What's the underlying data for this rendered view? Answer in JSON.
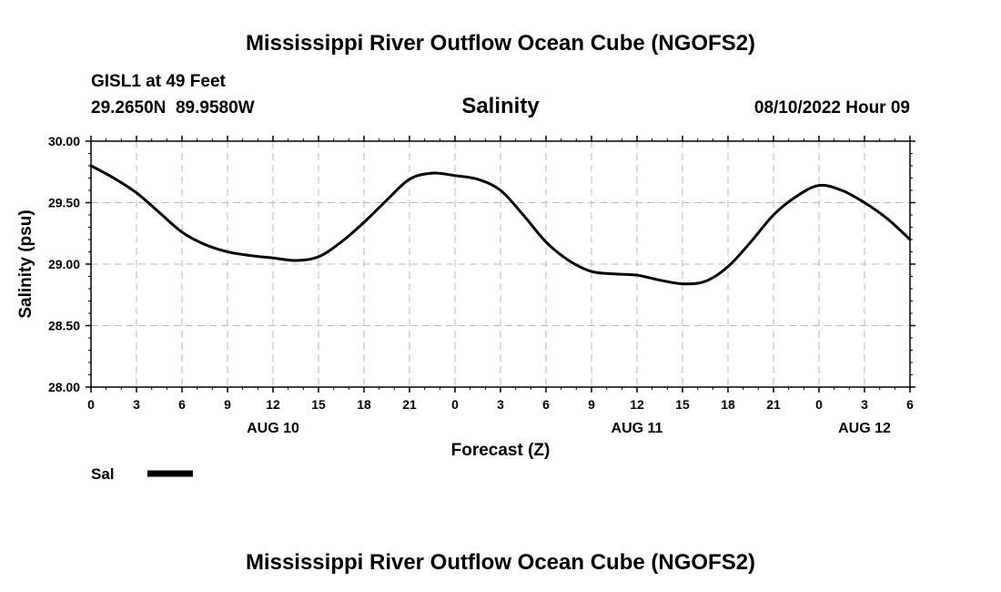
{
  "header": {
    "title": "Mississippi River Outflow Ocean Cube (NGOFS2)",
    "station": "GISL1 at 49 Feet",
    "coords": "29.2650N  89.9580W",
    "variable": "Salinity",
    "datetime": "08/10/2022 Hour 09"
  },
  "footer": {
    "title": "Mississippi River Outflow Ocean Cube (NGOFS2)"
  },
  "chart_data": {
    "type": "line",
    "title": "Salinity",
    "xlabel": "Forecast (Z)",
    "ylabel": "Salinity (psu)",
    "xlim": [
      0,
      54
    ],
    "ylim": [
      28.0,
      30.0
    ],
    "yticks": [
      30.0,
      29.5,
      29.0,
      28.5,
      28.0
    ],
    "ytick_labels": [
      "30.00",
      "29.50",
      "29.00",
      "28.50",
      "28.00"
    ],
    "xticks": [
      0,
      3,
      6,
      9,
      12,
      15,
      18,
      21,
      24,
      27,
      30,
      33,
      36,
      39,
      42,
      45,
      48,
      51,
      54
    ],
    "xtick_labels": [
      "0",
      "3",
      "6",
      "9",
      "12",
      "15",
      "18",
      "21",
      "0",
      "3",
      "6",
      "9",
      "12",
      "15",
      "18",
      "21",
      "0",
      "3",
      "6"
    ],
    "date_labels": [
      {
        "x": 12,
        "label": "AUG 10"
      },
      {
        "x": 36,
        "label": "AUG 11"
      },
      {
        "x": 51,
        "label": "AUG 12"
      }
    ],
    "grid": true,
    "legend": [
      {
        "name": "Sal",
        "placement": "bottom-left"
      }
    ],
    "series": [
      {
        "name": "Sal",
        "x": [
          0,
          1.5,
          3,
          4.5,
          6,
          7.5,
          9,
          10.5,
          12,
          13.5,
          15,
          16.5,
          18,
          19.5,
          21,
          22.5,
          24,
          25.5,
          27,
          28.5,
          30,
          31.5,
          33,
          34.5,
          36,
          37.5,
          39,
          40.5,
          42,
          43.5,
          45,
          46.5,
          48,
          49.5,
          51,
          52.5,
          54
        ],
        "values": [
          29.8,
          29.7,
          29.58,
          29.42,
          29.26,
          29.16,
          29.1,
          29.07,
          29.05,
          29.03,
          29.06,
          29.18,
          29.34,
          29.52,
          29.69,
          29.74,
          29.72,
          29.69,
          29.6,
          29.4,
          29.18,
          29.03,
          28.94,
          28.92,
          28.91,
          28.87,
          28.84,
          28.86,
          28.98,
          29.18,
          29.4,
          29.55,
          29.64,
          29.6,
          29.5,
          29.37,
          29.2
        ]
      }
    ]
  }
}
